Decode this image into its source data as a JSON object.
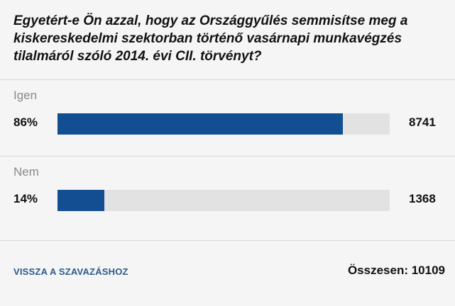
{
  "poll": {
    "question": "Egyetért-e Ön azzal, hogy az Országgyűlés semmisítse meg a kiskereskedelmi szektorban történő vasárnapi munkavégzés tilalmáról szóló 2014. évi CII. törvényt?",
    "options": [
      {
        "label": "Igen",
        "percent": "86%",
        "fraction": 0.86,
        "count": "8741"
      },
      {
        "label": "Nem",
        "percent": "14%",
        "fraction": 0.14,
        "count": "1368"
      }
    ],
    "back_label": "VISSZA A SZAVAZÁSHOZ",
    "total_label": "Összesen: 10109"
  },
  "colors": {
    "bar_fill": "#124e91",
    "bar_track": "#e2e2e2",
    "link": "#2b5a8c",
    "background": "#f5f5f5"
  }
}
